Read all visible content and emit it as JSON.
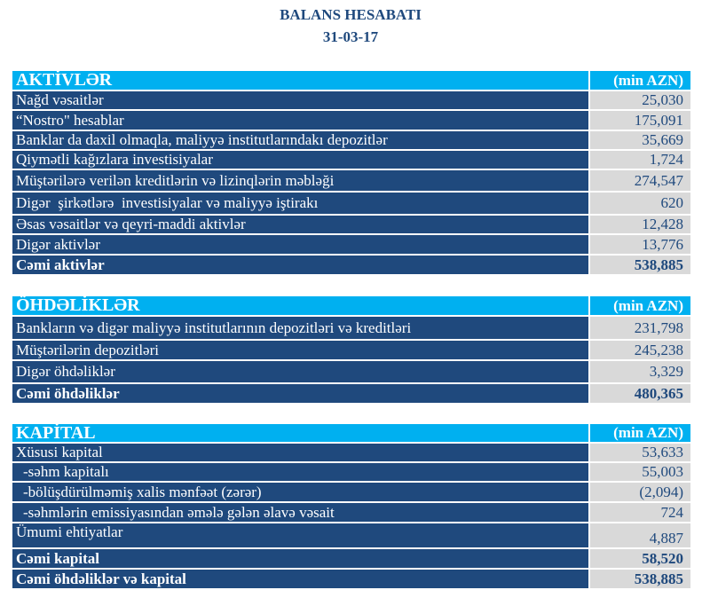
{
  "title": "BALANS HESABATI",
  "date": "31-03-17",
  "unit": "(min AZN)",
  "assets": {
    "header": "AKTİVLƏR",
    "rows": [
      {
        "label": "Nağd vəsaitlər",
        "value": "25,030"
      },
      {
        "label": "“Nostro\" hesablar",
        "value": "175,091"
      },
      {
        "label": "Banklar da daxil olmaqla, maliyyə institutlarındakı depozitlər",
        "value": "35,669"
      },
      {
        "label": "Qiymətli kağızlara investisiyalar",
        "value": "1,724"
      },
      {
        "label": "Müştərilərə verilən kreditlərin və lizinqlərin məbləği",
        "value": "274,547"
      },
      {
        "label": "Digər  şirkətlərə  investisiyalar və maliyyə iştirakı",
        "value": "620"
      },
      {
        "label": "Əsas vəsaitlər və qeyri-maddi aktivlər",
        "value": "12,428"
      },
      {
        "label": "Digər aktivlər",
        "value": "13,776"
      }
    ],
    "total": {
      "label": "Cəmi aktivlər",
      "value": "538,885"
    }
  },
  "liabilities": {
    "header": "ÖHDƏLİKLƏR",
    "rows": [
      {
        "label": "Bankların və digər maliyyə institutlarının depozitləri və kreditləri",
        "value": "231,798"
      },
      {
        "label": "Müştərilərin depozitləri",
        "value": "245,238"
      },
      {
        "label": "Digər öhdəliklər",
        "value": "3,329"
      }
    ],
    "total": {
      "label": "Cəmi öhdəliklər",
      "value": "480,365"
    }
  },
  "capital": {
    "header": "KAPİTAL",
    "rows": [
      {
        "label": "Xüsusi kapital",
        "value": "53,633"
      },
      {
        "label": "-səhm kapitalı",
        "value": "55,003"
      },
      {
        "label": "-bölüşdürülməmiş xalis mənfəət (zərər)",
        "value": "(2,094)"
      },
      {
        "label": "-səhmlərin emissiyasından əmələ gələn əlavə vəsait",
        "value": "724"
      },
      {
        "label": "Ümumi ehtiyatlar",
        "value": "4,887"
      }
    ],
    "total": {
      "label": "Cəmi kapital",
      "value": "58,520"
    },
    "grand_total": {
      "label": "Cəmi öhdəliklər və kapital",
      "value": "538,885"
    }
  }
}
